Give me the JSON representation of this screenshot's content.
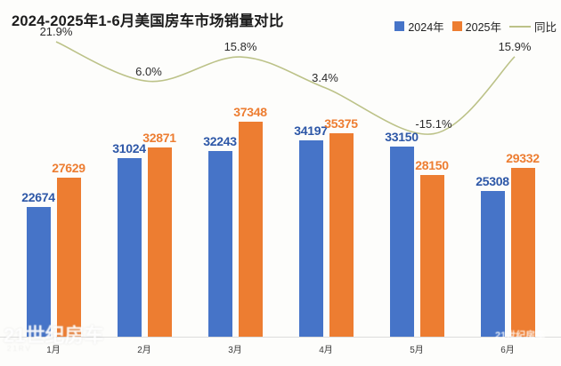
{
  "title": "2024-2025年1-6月美国房车市场销量对比",
  "legend": [
    {
      "label": "2024年",
      "swatch": "square",
      "color": "#4674c8"
    },
    {
      "label": "2025年",
      "swatch": "square",
      "color": "#ed7d31"
    },
    {
      "label": "同比",
      "swatch": "line",
      "color": "#bcc288"
    }
  ],
  "colors": {
    "bar_2024": "#4674c8",
    "bar_2025": "#ed7d31",
    "label_2024": "#2d57a7",
    "label_2025": "#ed7d31",
    "trend_line": "#bcc288",
    "pct_text": "#2b2b2b",
    "axis_line": "#dcdcdc",
    "background": "#fdfdfb"
  },
  "chart_data": {
    "type": "bar",
    "title": "2024-2025年1-6月美国房车市场销量对比",
    "categories": [
      "1月",
      "2月",
      "3月",
      "4月",
      "5月",
      "6月"
    ],
    "series": [
      {
        "name": "2024年",
        "type": "bar",
        "color": "#4674c8",
        "label_color": "#2d57a7",
        "values": [
          22674,
          31024,
          32243,
          34197,
          33150,
          25308
        ]
      },
      {
        "name": "2025年",
        "type": "bar",
        "color": "#ed7d31",
        "label_color": "#ed7d31",
        "values": [
          27629,
          32871,
          37348,
          35375,
          28150,
          29332
        ]
      }
    ],
    "line_series": {
      "name": "同比",
      "type": "line",
      "color": "#bcc288",
      "values_pct": [
        21.9,
        6.0,
        15.8,
        3.4,
        -15.1,
        15.9
      ],
      "labels": [
        "21.9%",
        "6.0%",
        "15.8%",
        "3.4%",
        "-15.1%",
        "15.9%"
      ]
    },
    "ylim": [
      0,
      40000
    ],
    "grid": false,
    "data_labels": true,
    "legend_position": "top-right"
  },
  "watermarks": {
    "bottom_left": "21世纪房车",
    "bottom_left_sub": "21RV",
    "bottom_right": "21世纪房车"
  }
}
